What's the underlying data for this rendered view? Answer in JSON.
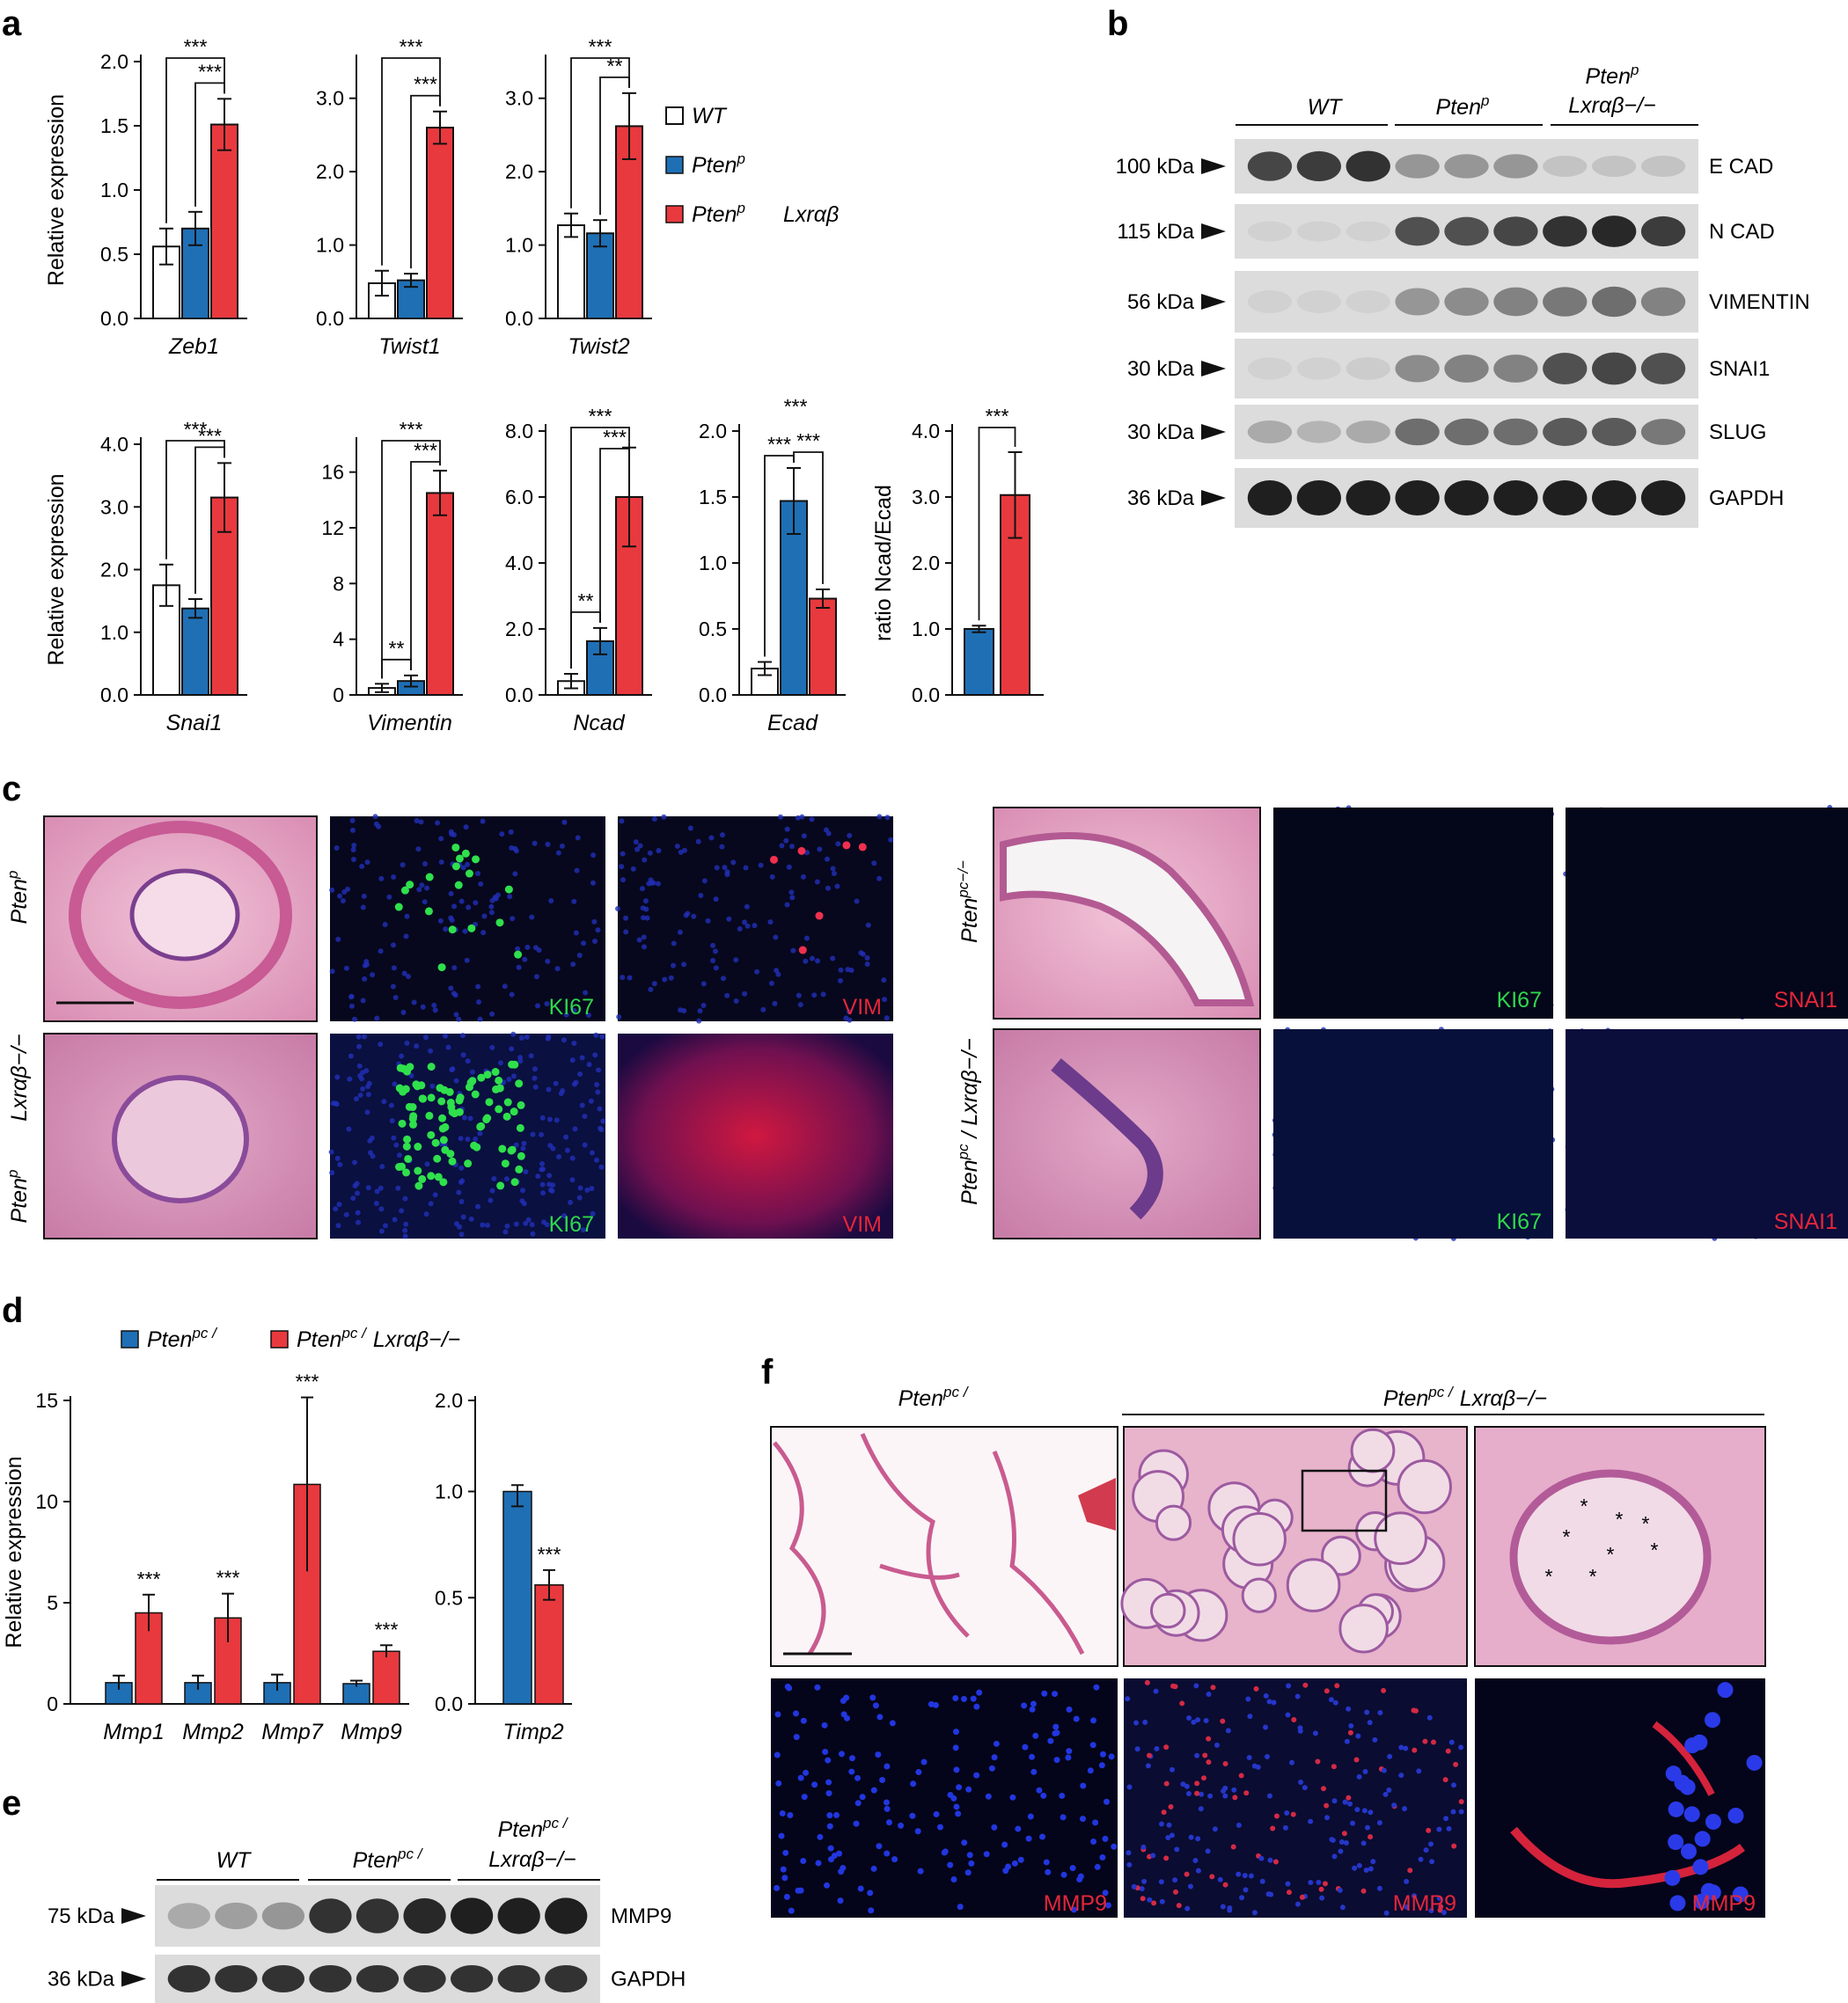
{
  "colors": {
    "wt": "#ffffff",
    "pten": "#1f6fb5",
    "lxr": "#e8393e",
    "axis": "#111111",
    "he_bg": "#e7a3c3",
    "fl_bg": "#07081e",
    "blot_bg": "#d9d9d9"
  },
  "panels": {
    "a": "a",
    "b": "b",
    "c": "c",
    "d": "d",
    "e": "e",
    "f": "f"
  },
  "legend_a": {
    "wt": "WT",
    "pten": "Pten",
    "pten_sup": "p",
    "lxr": "Pten",
    "lxr_sup": "p",
    "lxr_suffix": "Lxrαβ"
  },
  "legend_d": {
    "pten": "Pten",
    "pten_sup": "pc /",
    "lxr": "Pten",
    "lxr_sup": "pc /",
    "lxr_suffix": "Lxrαβ−/−"
  },
  "chart_data": [
    {
      "type": "bar",
      "panel": "a",
      "xlabel": "Zeb1",
      "ylabel": "Relative expression",
      "ylim": [
        0,
        2.0
      ],
      "yticks": [
        "0.0",
        "0.5",
        "1.0",
        "1.5",
        "2.0"
      ],
      "series": [
        {
          "name": "WT",
          "values": [
            0.56
          ],
          "err": [
            0.14
          ]
        },
        {
          "name": "Pten p",
          "values": [
            0.7
          ],
          "err": [
            0.13
          ]
        },
        {
          "name": "Pten p Lxrαβ",
          "values": [
            1.51
          ],
          "err": [
            0.2
          ]
        }
      ],
      "sig": [
        {
          "text": "***"
        },
        {
          "text": "***"
        }
      ]
    },
    {
      "type": "bar",
      "panel": "a",
      "xlabel": "Twist1",
      "ylabel": "",
      "ylim": [
        0,
        3.5
      ],
      "yticks": [
        "0.0",
        "1.0",
        "2.0",
        "3.0"
      ],
      "series": [
        {
          "name": "WT",
          "values": [
            0.48
          ],
          "err": [
            0.17
          ]
        },
        {
          "name": "Pten p",
          "values": [
            0.52
          ],
          "err": [
            0.09
          ]
        },
        {
          "name": "Pten p Lxrαβ",
          "values": [
            2.6
          ],
          "err": [
            0.22
          ]
        }
      ],
      "sig": [
        {
          "text": "***"
        },
        {
          "text": "***"
        }
      ]
    },
    {
      "type": "bar",
      "panel": "a",
      "xlabel": "Twist2",
      "ylabel": "",
      "ylim": [
        0,
        3.5
      ],
      "yticks": [
        "0.0",
        "1.0",
        "2.0",
        "3.0"
      ],
      "series": [
        {
          "name": "WT",
          "values": [
            1.27
          ],
          "err": [
            0.16
          ]
        },
        {
          "name": "Pten p",
          "values": [
            1.16
          ],
          "err": [
            0.18
          ]
        },
        {
          "name": "Pten p Lxrαβ",
          "values": [
            2.62
          ],
          "err": [
            0.45
          ]
        }
      ],
      "sig": [
        {
          "text": "***"
        },
        {
          "text": "**"
        }
      ]
    },
    {
      "type": "bar",
      "panel": "a",
      "xlabel": "Snai1",
      "ylabel": "Relative expression",
      "ylim": [
        0,
        4.0
      ],
      "yticks": [
        "0.0",
        "1.0",
        "2.0",
        "3.0",
        "4.0"
      ],
      "series": [
        {
          "name": "WT",
          "values": [
            1.75
          ],
          "err": [
            0.33
          ]
        },
        {
          "name": "Pten p",
          "values": [
            1.38
          ],
          "err": [
            0.15
          ]
        },
        {
          "name": "Pten p Lxrαβ",
          "values": [
            3.15
          ],
          "err": [
            0.55
          ]
        }
      ],
      "sig": [
        {
          "text": "***"
        },
        {
          "text": "***"
        }
      ]
    },
    {
      "type": "bar",
      "panel": "a",
      "xlabel": "Vimentin",
      "ylabel": "",
      "ylim": [
        0,
        18
      ],
      "yticks": [
        "0",
        "4",
        "8",
        "12",
        "16"
      ],
      "series": [
        {
          "name": "WT",
          "values": [
            0.5
          ],
          "err": [
            0.3
          ]
        },
        {
          "name": "Pten p",
          "values": [
            1.0
          ],
          "err": [
            0.4
          ]
        },
        {
          "name": "Pten p Lxrαβ",
          "values": [
            14.5
          ],
          "err": [
            1.6
          ]
        }
      ],
      "sig": [
        {
          "text": "***"
        },
        {
          "text": "***"
        },
        {
          "text": "**"
        }
      ]
    },
    {
      "type": "bar",
      "panel": "a",
      "xlabel": "Ncad",
      "ylabel": "",
      "ylim": [
        0,
        8.0
      ],
      "yticks": [
        "0.0",
        "2.0",
        "4.0",
        "6.0",
        "8.0"
      ],
      "series": [
        {
          "name": "WT",
          "values": [
            0.42
          ],
          "err": [
            0.22
          ]
        },
        {
          "name": "Pten p",
          "values": [
            1.63
          ],
          "err": [
            0.4
          ]
        },
        {
          "name": "Pten p Lxrαβ",
          "values": [
            6.0
          ],
          "err": [
            1.5
          ]
        }
      ],
      "sig": [
        {
          "text": "***"
        },
        {
          "text": "***"
        },
        {
          "text": "**"
        }
      ]
    },
    {
      "type": "bar",
      "panel": "a",
      "xlabel": "Ecad",
      "ylabel": "",
      "ylim": [
        0,
        2.0
      ],
      "yticks": [
        "0.0",
        "0.5",
        "1.0",
        "1.5",
        "2.0"
      ],
      "series": [
        {
          "name": "WT",
          "values": [
            0.2
          ],
          "err": [
            0.05
          ]
        },
        {
          "name": "Pten p",
          "values": [
            1.47
          ],
          "err": [
            0.25
          ]
        },
        {
          "name": "Pten p Lxrαβ",
          "values": [
            0.73
          ],
          "err": [
            0.07
          ]
        }
      ],
      "sig": [
        {
          "text": "***"
        },
        {
          "text": "***"
        },
        {
          "text": "**"
        }
      ]
    },
    {
      "type": "bar",
      "panel": "a",
      "xlabel": "",
      "ylabel": "ratio Ncad/Ecad",
      "ylim": [
        0,
        4.0
      ],
      "yticks": [
        "0.0",
        "1.0",
        "2.0",
        "3.0",
        "4.0"
      ],
      "series": [
        {
          "name": "Pten p",
          "values": [
            1.0
          ],
          "err": [
            0.05
          ]
        },
        {
          "name": "Pten p Lxrαβ",
          "values": [
            3.03
          ],
          "err": [
            0.65
          ]
        }
      ],
      "sig": [
        {
          "text": "***"
        }
      ]
    },
    {
      "type": "bar",
      "panel": "d",
      "ylabel": "Relative expression",
      "ylim": [
        0,
        15
      ],
      "yticks": [
        "0",
        "5",
        "10",
        "15"
      ],
      "categories": [
        "Mmp1",
        "Mmp2",
        "Mmp7",
        "Mmp9"
      ],
      "series": [
        {
          "name": "Pten pc /",
          "values": [
            1.05,
            1.05,
            1.05,
            1.0
          ],
          "err": [
            0.35,
            0.35,
            0.4,
            0.15
          ]
        },
        {
          "name": "Pten pc / Lxrαβ−/−",
          "values": [
            4.5,
            4.25,
            10.85,
            2.6
          ],
          "err": [
            0.9,
            1.2,
            4.3,
            0.3
          ]
        }
      ],
      "sig": [
        "***",
        "***",
        "***",
        "***"
      ]
    },
    {
      "type": "bar",
      "panel": "d",
      "ylabel": "",
      "ylim": [
        0,
        2.0
      ],
      "yticks": [
        "0.0",
        "0.5",
        "1.0",
        "2.0"
      ],
      "categories": [
        "Timp2"
      ],
      "series": [
        {
          "name": "Pten pc /",
          "values": [
            1.0
          ],
          "err": [
            0.07
          ]
        },
        {
          "name": "Pten pc / Lxrαβ−/−",
          "values": [
            0.56
          ],
          "err": [
            0.07
          ]
        }
      ],
      "sig": [
        "***"
      ]
    }
  ],
  "blot_b": {
    "groups": [
      {
        "label": "WT"
      },
      {
        "label": "Pten",
        "sup": "p"
      },
      {
        "label": "Pten",
        "sup": "p",
        "line2": "Lxrαβ−/−"
      }
    ],
    "rows": [
      {
        "kda": "100 kDa",
        "name": "E CAD"
      },
      {
        "kda": "115 kDa",
        "name": "N CAD"
      },
      {
        "kda": "56 kDa",
        "name": "VIMENTIN"
      },
      {
        "kda": "30 kDa",
        "name": "SNAI1"
      },
      {
        "kda": "30 kDa",
        "name": "SLUG"
      },
      {
        "kda": "36 kDa",
        "name": "GAPDH"
      }
    ]
  },
  "blot_e": {
    "groups": [
      {
        "label": "WT"
      },
      {
        "label": "Pten",
        "sup": "pc /"
      },
      {
        "label": "Pten",
        "sup": "pc /",
        "line2": "Lxrαβ−/−"
      }
    ],
    "rows": [
      {
        "kda": "75 kDa",
        "name": "MMP9"
      },
      {
        "kda": "36 kDa",
        "name": "GAPDH"
      }
    ]
  },
  "panel_c": {
    "left_rows": [
      {
        "label": "Pten",
        "sup": "p"
      },
      {
        "label": "Pten",
        "sup": "p",
        "line2": "Lxrαβ−/−"
      }
    ],
    "right_rows": [
      {
        "label": "Pten",
        "sup": "pc−/−"
      },
      {
        "label": "Pten",
        "sup": "pc",
        "suffix": " / Lxrαβ−/−"
      }
    ],
    "stain_green": "KI67",
    "stain_red_left": "VIM",
    "stain_red_right": "SNAI1"
  },
  "panel_f": {
    "col1": {
      "label": "Pten",
      "sup": "pc /"
    },
    "col2": {
      "label": "Pten",
      "sup": "pc /",
      "suffix": "Lxrαβ−/−"
    },
    "stain": "MMP9",
    "asterisk": "*"
  }
}
